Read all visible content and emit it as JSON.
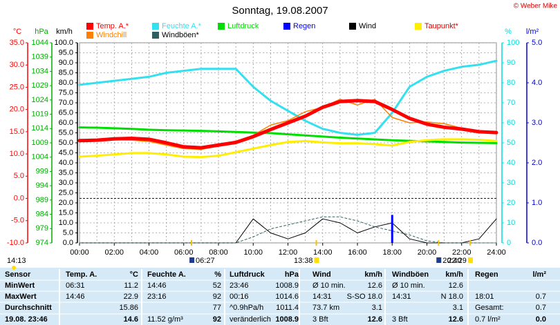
{
  "chart_data": {
    "type": "line",
    "title": "Sonntag, 19.08.2007",
    "copyright": "© Weber Mike",
    "x": [
      0,
      1,
      2,
      3,
      4,
      5,
      6,
      7,
      8,
      9,
      10,
      11,
      12,
      13,
      14,
      15,
      16,
      17,
      18,
      19,
      20,
      21,
      22,
      23,
      24
    ],
    "xlim": [
      0,
      24
    ],
    "xticks": [
      {
        "value": 0,
        "label": "00:00"
      },
      {
        "value": 2,
        "label": "02:00"
      },
      {
        "value": 4,
        "label": "04:00"
      },
      {
        "value": 6,
        "label": "06:00"
      },
      {
        "value": 8,
        "label": "08:00"
      },
      {
        "value": 10,
        "label": "10:00"
      },
      {
        "value": 12,
        "label": "12:00"
      },
      {
        "value": 14,
        "label": "14:00"
      },
      {
        "value": 16,
        "label": "16:00"
      },
      {
        "value": 18,
        "label": "18:00"
      },
      {
        "value": 20,
        "label": "20:00"
      },
      {
        "value": 22,
        "label": "22:00"
      },
      {
        "value": 24,
        "label": "24:00"
      }
    ],
    "ylabel": "°C",
    "ycolor": "#ff0000",
    "ylim": [
      -10,
      35
    ],
    "yticks": [
      {
        "value": -10,
        "label": "-10.0"
      },
      {
        "value": -5,
        "label": "-5.0"
      },
      {
        "value": 0,
        "label": "0.0"
      },
      {
        "value": 5,
        "label": "5.0"
      },
      {
        "value": 10,
        "label": "10.0"
      },
      {
        "value": 15,
        "label": "15.0"
      },
      {
        "value": 20,
        "label": "20.0"
      },
      {
        "value": 25,
        "label": "25.0"
      },
      {
        "value": 30,
        "label": "30.0"
      },
      {
        "value": 35,
        "label": "35.0"
      }
    ],
    "y2label": "hPa",
    "y2color": "#00aa00",
    "y2lim": [
      974,
      1044
    ],
    "y2ticks": [
      974,
      979,
      984,
      989,
      994,
      999,
      1004,
      1009,
      1014,
      1019,
      1024,
      1029,
      1034,
      1039,
      1044
    ],
    "y3label": "km/h",
    "y3color": "#000000",
    "y3lim": [
      0,
      100
    ],
    "y3ticks": [
      {
        "value": 0,
        "label": "0.0"
      },
      {
        "value": 5,
        "label": "5.0"
      },
      {
        "value": 10,
        "label": "10.0"
      },
      {
        "value": 15,
        "label": "15.0"
      },
      {
        "value": 20,
        "label": "20.0"
      },
      {
        "value": 25,
        "label": "25.0"
      },
      {
        "value": 30,
        "label": "30.0"
      },
      {
        "value": 35,
        "label": "35.0"
      },
      {
        "value": 40,
        "label": "40.0"
      },
      {
        "value": 45,
        "label": "45.0"
      },
      {
        "value": 50,
        "label": "50.0"
      },
      {
        "value": 55,
        "label": "55.0"
      },
      {
        "value": 60,
        "label": "60.0"
      },
      {
        "value": 65,
        "label": "65.0"
      },
      {
        "value": 70,
        "label": "70.0"
      },
      {
        "value": 75,
        "label": "75.0"
      },
      {
        "value": 80,
        "label": "80.0"
      },
      {
        "value": 85,
        "label": "85.0"
      },
      {
        "value": 90,
        "label": "90.0"
      },
      {
        "value": 95,
        "label": "95.0"
      },
      {
        "value": 100,
        "label": "100.0"
      }
    ],
    "y4label": "%",
    "y4color": "#00dddd",
    "y4lim": [
      0,
      100
    ],
    "y4ticks": [
      0,
      10,
      20,
      30,
      40,
      50,
      60,
      70,
      80,
      90,
      100
    ],
    "y5label": "l/m²",
    "y5color": "#0000cc",
    "y5lim": [
      0,
      5
    ],
    "y5ticks": [
      {
        "value": 0,
        "label": "0.0"
      },
      {
        "value": 1,
        "label": "1.0"
      },
      {
        "value": 2,
        "label": "2.0"
      },
      {
        "value": 3,
        "label": "3.0"
      },
      {
        "value": 4,
        "label": "4.0"
      },
      {
        "value": 5,
        "label": "5.0"
      }
    ],
    "grid": true,
    "series": [
      {
        "name": "Temp. A.*",
        "color": "#ff0000",
        "axis": "y",
        "width": 5,
        "values": [
          13.0,
          13.1,
          13.4,
          13.5,
          13.3,
          12.5,
          11.6,
          11.4,
          12.0,
          12.6,
          13.9,
          15.5,
          17.0,
          18.5,
          20.5,
          21.8,
          22.0,
          21.8,
          20.0,
          18.0,
          16.7,
          16.0,
          15.6,
          15.0,
          14.8
        ]
      },
      {
        "name": "Feuchte A.*",
        "color": "#33e0f0",
        "axis": "y4",
        "width": 3,
        "values": [
          79,
          80,
          81,
          82,
          83,
          85,
          86,
          87,
          87,
          87,
          78,
          71,
          66,
          61,
          57,
          55,
          54,
          55,
          65,
          78,
          83,
          86,
          88,
          89,
          91
        ]
      },
      {
        "name": "Luftdruck",
        "color": "#00dd00",
        "axis": "y2",
        "width": 3,
        "values": [
          1014.4,
          1014.3,
          1014.1,
          1013.9,
          1013.6,
          1013.4,
          1013.3,
          1013.2,
          1013.0,
          1012.8,
          1012.6,
          1012.4,
          1012.0,
          1011.6,
          1011.2,
          1010.8,
          1010.5,
          1010.2,
          1009.9,
          1009.7,
          1009.5,
          1009.3,
          1009.1,
          1009.0,
          1008.9
        ]
      },
      {
        "name": "Regen",
        "color": "#0000ff",
        "axis": "y5",
        "kind": "bar",
        "x": [
          18
        ],
        "values": [
          0.7
        ]
      },
      {
        "name": "Wind",
        "color": "#000000",
        "axis": "y3",
        "width": 1,
        "values": [
          0,
          0,
          0,
          0,
          0,
          0,
          0,
          0,
          0,
          0,
          12,
          5,
          2,
          5,
          12,
          10,
          5,
          8,
          10,
          2,
          0,
          0,
          0,
          2,
          12
        ]
      },
      {
        "name": "Taupunkt*",
        "color": "#ffee00",
        "axis": "y",
        "width": 3,
        "values": [
          9.4,
          9.6,
          9.9,
          10.2,
          10.2,
          9.9,
          9.4,
          9.3,
          9.6,
          10.4,
          11.2,
          12.0,
          12.7,
          12.9,
          12.6,
          12.4,
          12.4,
          12.2,
          11.9,
          12.7,
          13.1,
          13.3,
          13.3,
          13.2,
          12.9
        ]
      },
      {
        "name": "Windchill",
        "color": "#ff8000",
        "axis": "y",
        "width": 1.5,
        "values": [
          13.0,
          13.1,
          13.2,
          13.1,
          12.8,
          12.0,
          11.2,
          11.0,
          11.8,
          12.5,
          14.2,
          16.5,
          17.5,
          19.5,
          20.5,
          22.3,
          21.0,
          22.3,
          18.2,
          17.0,
          17.2,
          16.8,
          15.8,
          15.2,
          14.8
        ]
      },
      {
        "name": "Windböen*",
        "color": "#2f5f5f",
        "axis": "y3",
        "width": 1,
        "dashed": true,
        "values": [
          0,
          0,
          0,
          0,
          0,
          0,
          0,
          0,
          0,
          0,
          3,
          7,
          9,
          11,
          13,
          13,
          11,
          8,
          6,
          4,
          1,
          0,
          0,
          0,
          0
        ]
      }
    ],
    "time_label": "14:13",
    "events": [
      "06:27",
      "13:38",
      "20:40",
      "22:29"
    ]
  },
  "table": {
    "header": [
      "Sensor",
      "Temp. A.",
      "°C",
      "Feuchte A.",
      "%",
      "Luftdruck",
      "hPa",
      "Wind",
      "km/h",
      "Windböen",
      "km/h",
      "Regen",
      "l/m²"
    ],
    "rows": [
      [
        "MinWert",
        "06:31",
        "11.2",
        "14:46",
        "52",
        "23:46",
        "1008.9",
        "Ø 10 min.",
        "12.6",
        "Ø 10 min.",
        "12.6",
        null,
        null
      ],
      [
        "MaxWert",
        "14:46",
        "22.9",
        "23:16",
        "92",
        "00:16",
        "1014.6",
        "14:31",
        "S-SO 18.0",
        "14:31",
        "N 18.0",
        "18:01",
        "0.7"
      ],
      [
        "Durchschnitt",
        null,
        "15.86",
        null,
        "77",
        "^0.9hPa/h",
        "1011.4",
        "73.7 km",
        "3.1",
        null,
        "3.1",
        "Gesamt:",
        "0.7"
      ],
      [
        "19.08. 23:46",
        null,
        "14.6",
        "11.52 g/m³",
        "92",
        "veränderlich",
        "1008.9",
        "3 Bft",
        "12.6",
        "3 Bft",
        "12.6",
        "0.7 l/m²",
        "0.0"
      ]
    ]
  }
}
